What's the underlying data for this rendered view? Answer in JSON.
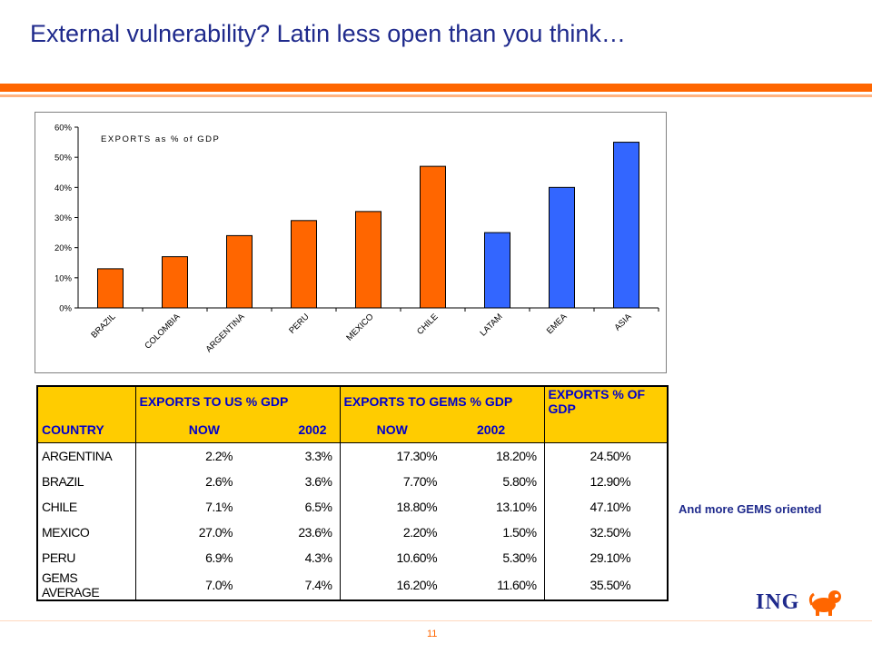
{
  "title": "External vulnerability? Latin less open than you think…",
  "side_note": "And more GEMS oriented",
  "page_number": "11",
  "logo": {
    "text": "ING"
  },
  "colors": {
    "orange": "#ff6600",
    "blue": "#3366ff",
    "title_blue": "#1f2a8c",
    "header_yellow": "#ffcc00",
    "header_text": "#0000cc"
  },
  "chart_data": {
    "type": "bar",
    "title": "EXPORTS as % of GDP",
    "categories": [
      "BRAZIL",
      "COLOMBIA",
      "ARGENTINA",
      "PERU",
      "MEXICO",
      "CHILE",
      "LATAM",
      "EMEA",
      "ASIA"
    ],
    "values": [
      13,
      17,
      24,
      29,
      32,
      47,
      25,
      40,
      55
    ],
    "bar_colors": [
      "#ff6600",
      "#ff6600",
      "#ff6600",
      "#ff6600",
      "#ff6600",
      "#ff6600",
      "#3366ff",
      "#3366ff",
      "#3366ff"
    ],
    "ylim": [
      0,
      60
    ],
    "yticks": [
      "0%",
      "10%",
      "20%",
      "30%",
      "40%",
      "50%",
      "60%"
    ],
    "xlabel": "",
    "ylabel": "",
    "grid": false
  },
  "table": {
    "group_headers": [
      "EXPORTS TO US % GDP",
      "EXPORTS TO GEMS % GDP",
      "EXPORTS % OF GDP"
    ],
    "sub_headers": [
      "COUNTRY",
      "NOW",
      "2002",
      "NOW",
      "2002",
      ""
    ],
    "rows": [
      [
        "ARGENTINA",
        "2.2%",
        "3.3%",
        "17.30%",
        "18.20%",
        "24.50%"
      ],
      [
        "BRAZIL",
        "2.6%",
        "3.6%",
        "7.70%",
        "5.80%",
        "12.90%"
      ],
      [
        "CHILE",
        "7.1%",
        "6.5%",
        "18.80%",
        "13.10%",
        "47.10%"
      ],
      [
        "MEXICO",
        "27.0%",
        "23.6%",
        "2.20%",
        "1.50%",
        "32.50%"
      ],
      [
        "PERU",
        "6.9%",
        "4.3%",
        "10.60%",
        "5.30%",
        "29.10%"
      ],
      [
        "GEMS AVERAGE",
        "7.0%",
        "7.4%",
        "16.20%",
        "11.60%",
        "35.50%"
      ]
    ]
  }
}
